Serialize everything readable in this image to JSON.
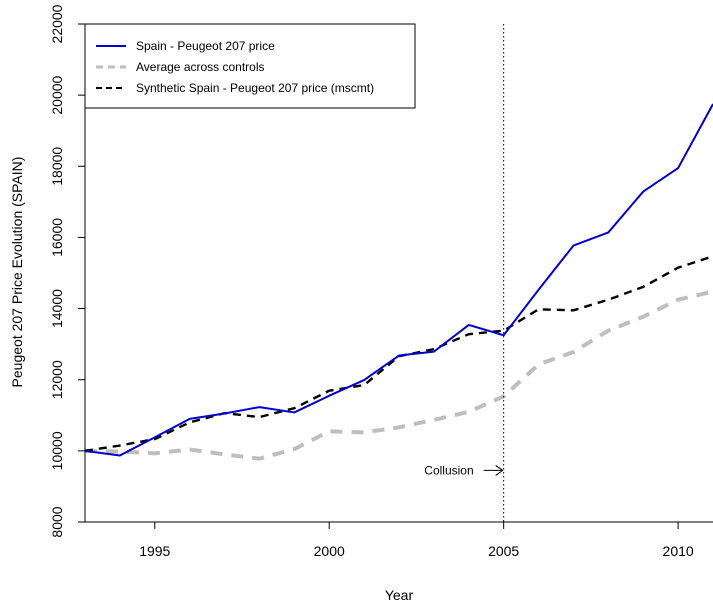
{
  "chart_data": {
    "type": "line",
    "xlabel": "Year",
    "ylabel": "Peugeot 207 Price Evolution (SPAIN)",
    "xlim": [
      1993,
      2011
    ],
    "ylim": [
      8000,
      22000
    ],
    "x_ticks": [
      1995,
      2000,
      2005,
      2010
    ],
    "y_ticks": [
      8000,
      10000,
      12000,
      14000,
      16000,
      18000,
      20000,
      22000
    ],
    "legend_position": "top-left",
    "series": [
      {
        "name": "Spain - Peugeot 207 price",
        "color": "#0000CD",
        "style": "solid",
        "x": [
          1993,
          1994,
          1995,
          1996,
          1997,
          1998,
          1999,
          2000,
          2001,
          2002,
          2003,
          2004,
          2005,
          2006,
          2007,
          2008,
          2009,
          2010,
          2011
        ],
        "values": [
          10000,
          9870,
          10380,
          10900,
          11050,
          11230,
          11080,
          11550,
          11990,
          12680,
          12790,
          13540,
          13250,
          14530,
          15770,
          16140,
          17290,
          17950,
          19750
        ]
      },
      {
        "name": "Average across controls",
        "color": "#BEBEBE",
        "style": "dashed",
        "x": [
          1993,
          1994,
          1995,
          1996,
          1997,
          1998,
          1999,
          2000,
          2001,
          2002,
          2003,
          2004,
          2005,
          2006,
          2007,
          2008,
          2009,
          2010,
          2011
        ],
        "values": [
          10000,
          9980,
          9930,
          10040,
          9900,
          9780,
          10050,
          10550,
          10520,
          10660,
          10870,
          11100,
          11530,
          12430,
          12780,
          13380,
          13770,
          14250,
          14480
        ]
      },
      {
        "name": "Synthetic Spain - Peugeot 207 price (mscmt)",
        "color": "#000000",
        "style": "dashed",
        "x": [
          1993,
          1994,
          1995,
          1996,
          1997,
          1998,
          1999,
          2000,
          2001,
          2002,
          2003,
          2004,
          2005,
          2006,
          2007,
          2008,
          2009,
          2010,
          2011
        ],
        "values": [
          10000,
          10150,
          10330,
          10800,
          11060,
          10950,
          11200,
          11690,
          11850,
          12660,
          12860,
          13280,
          13380,
          13980,
          13950,
          14250,
          14610,
          15150,
          15470
        ]
      }
    ],
    "annotations": [
      {
        "label": "Collusion",
        "x": 2005,
        "y": 9450
      }
    ],
    "vline": {
      "x": 2005,
      "style": "dotted"
    }
  }
}
